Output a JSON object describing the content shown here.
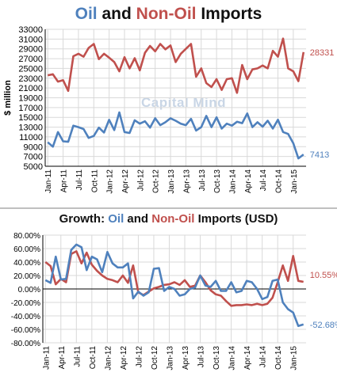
{
  "colors": {
    "oil": "#4f81bd",
    "non_oil": "#c0504d",
    "grid": "#d9d9d9",
    "axis": "#000000"
  },
  "watermark": "Capital Mind",
  "chart_data": [
    {
      "type": "line",
      "title": {
        "part1": "Oil",
        "part2": " and ",
        "part3": "Non-Oil",
        "part4": " Imports"
      },
      "ylabel": "$ million",
      "ylim": [
        5000,
        33000
      ],
      "yticks": [
        "5000",
        "7000",
        "9000",
        "11000",
        "13000",
        "15000",
        "17000",
        "19000",
        "21000",
        "23000",
        "25000",
        "27000",
        "29000",
        "31000",
        "33000"
      ],
      "xtick_labels": [
        "Jan-11",
        "Apr-11",
        "Jul-11",
        "Oct-11",
        "Jan-12",
        "Apr-12",
        "Jul-12",
        "Oct-12",
        "Jan-13",
        "Apr-13",
        "Jul-13",
        "Oct-13",
        "Jan-14",
        "Apr-14",
        "Jul-14",
        "Oct-14",
        "Jan-15"
      ],
      "grid": true,
      "series": [
        {
          "name": "Non-Oil",
          "end_label": "28331",
          "values": [
            23600,
            23800,
            22300,
            22600,
            20400,
            27500,
            28000,
            27400,
            29200,
            30000,
            26900,
            28000,
            27200,
            26300,
            24400,
            27300,
            25000,
            27100,
            24600,
            28200,
            29600,
            28500,
            30000,
            28900,
            29700,
            26300,
            28000,
            29000,
            30000,
            23300,
            25000,
            22000,
            21200,
            22800,
            20600,
            22800,
            23000,
            20000,
            25700,
            22800,
            24800,
            25000,
            25600,
            25000,
            28600,
            27400,
            31100,
            25000,
            24400,
            22400,
            28331
          ]
        },
        {
          "name": "Oil",
          "end_label": "7413",
          "values": [
            9900,
            9000,
            12000,
            10100,
            10000,
            13300,
            13000,
            12600,
            10800,
            11200,
            12900,
            11900,
            14500,
            12400,
            16000,
            12000,
            11800,
            14400,
            13700,
            14200,
            12900,
            14800,
            13400,
            14000,
            14800,
            14300,
            13700,
            13400,
            14700,
            12300,
            13000,
            15300,
            13000,
            15000,
            12700,
            13700,
            13300,
            14100,
            13800,
            15800,
            13000,
            14000,
            13100,
            14300,
            12700,
            14500,
            12000,
            11600,
            9700,
            6600,
            7413
          ]
        }
      ]
    },
    {
      "type": "line",
      "title": {
        "prefix": "Growth: ",
        "part1": "Oil",
        "part2": " and ",
        "part3": "Non-Oil",
        "part4": " Imports (USD)"
      },
      "ylim": [
        -80,
        80
      ],
      "yticks": [
        "80.00%",
        "60.00%",
        "40.00%",
        "20.00%",
        "0.00%",
        "-20.00%",
        "-40.00%",
        "-60.00%",
        "-80.00%"
      ],
      "xtick_labels": [
        "Jan-11",
        "Apr-11",
        "Jul-11",
        "Oct-11",
        "Jan-12",
        "Apr-12",
        "Jul-12",
        "Oct-12",
        "Jan-13",
        "Apr-13",
        "Jul-13",
        "Oct-13",
        "Jan-14",
        "Apr-14",
        "Jul-14",
        "Oct-14",
        "Jan-15"
      ],
      "grid": true,
      "series": [
        {
          "name": "Non-Oil",
          "end_label": "10.55%",
          "values": [
            40,
            34,
            7,
            15,
            10,
            52,
            56,
            38,
            54,
            36,
            27,
            20,
            15,
            13,
            10,
            20,
            9,
            35,
            -5,
            -9,
            -4,
            1,
            3,
            6,
            7,
            10,
            6,
            13,
            3,
            5,
            20,
            10,
            -2,
            -8,
            -10,
            -18,
            -25,
            -24,
            -24,
            -23,
            -24,
            -22,
            -24,
            -22,
            -13,
            10,
            35,
            12,
            49,
            12,
            10.55
          ]
        },
        {
          "name": "Oil",
          "end_label": "-52.68%",
          "values": [
            13,
            9,
            48,
            14,
            15,
            58,
            66,
            62,
            28,
            48,
            44,
            25,
            55,
            38,
            32,
            32,
            38,
            -14,
            -4,
            -10,
            -5,
            30,
            31,
            -3,
            3,
            0,
            -10,
            -8,
            0,
            2,
            20,
            5,
            3,
            12,
            -3,
            -3,
            10,
            -5,
            -3,
            12,
            10,
            0,
            -15,
            -12,
            12,
            14,
            -20,
            -30,
            -35,
            -55,
            -52.68
          ]
        }
      ]
    }
  ]
}
